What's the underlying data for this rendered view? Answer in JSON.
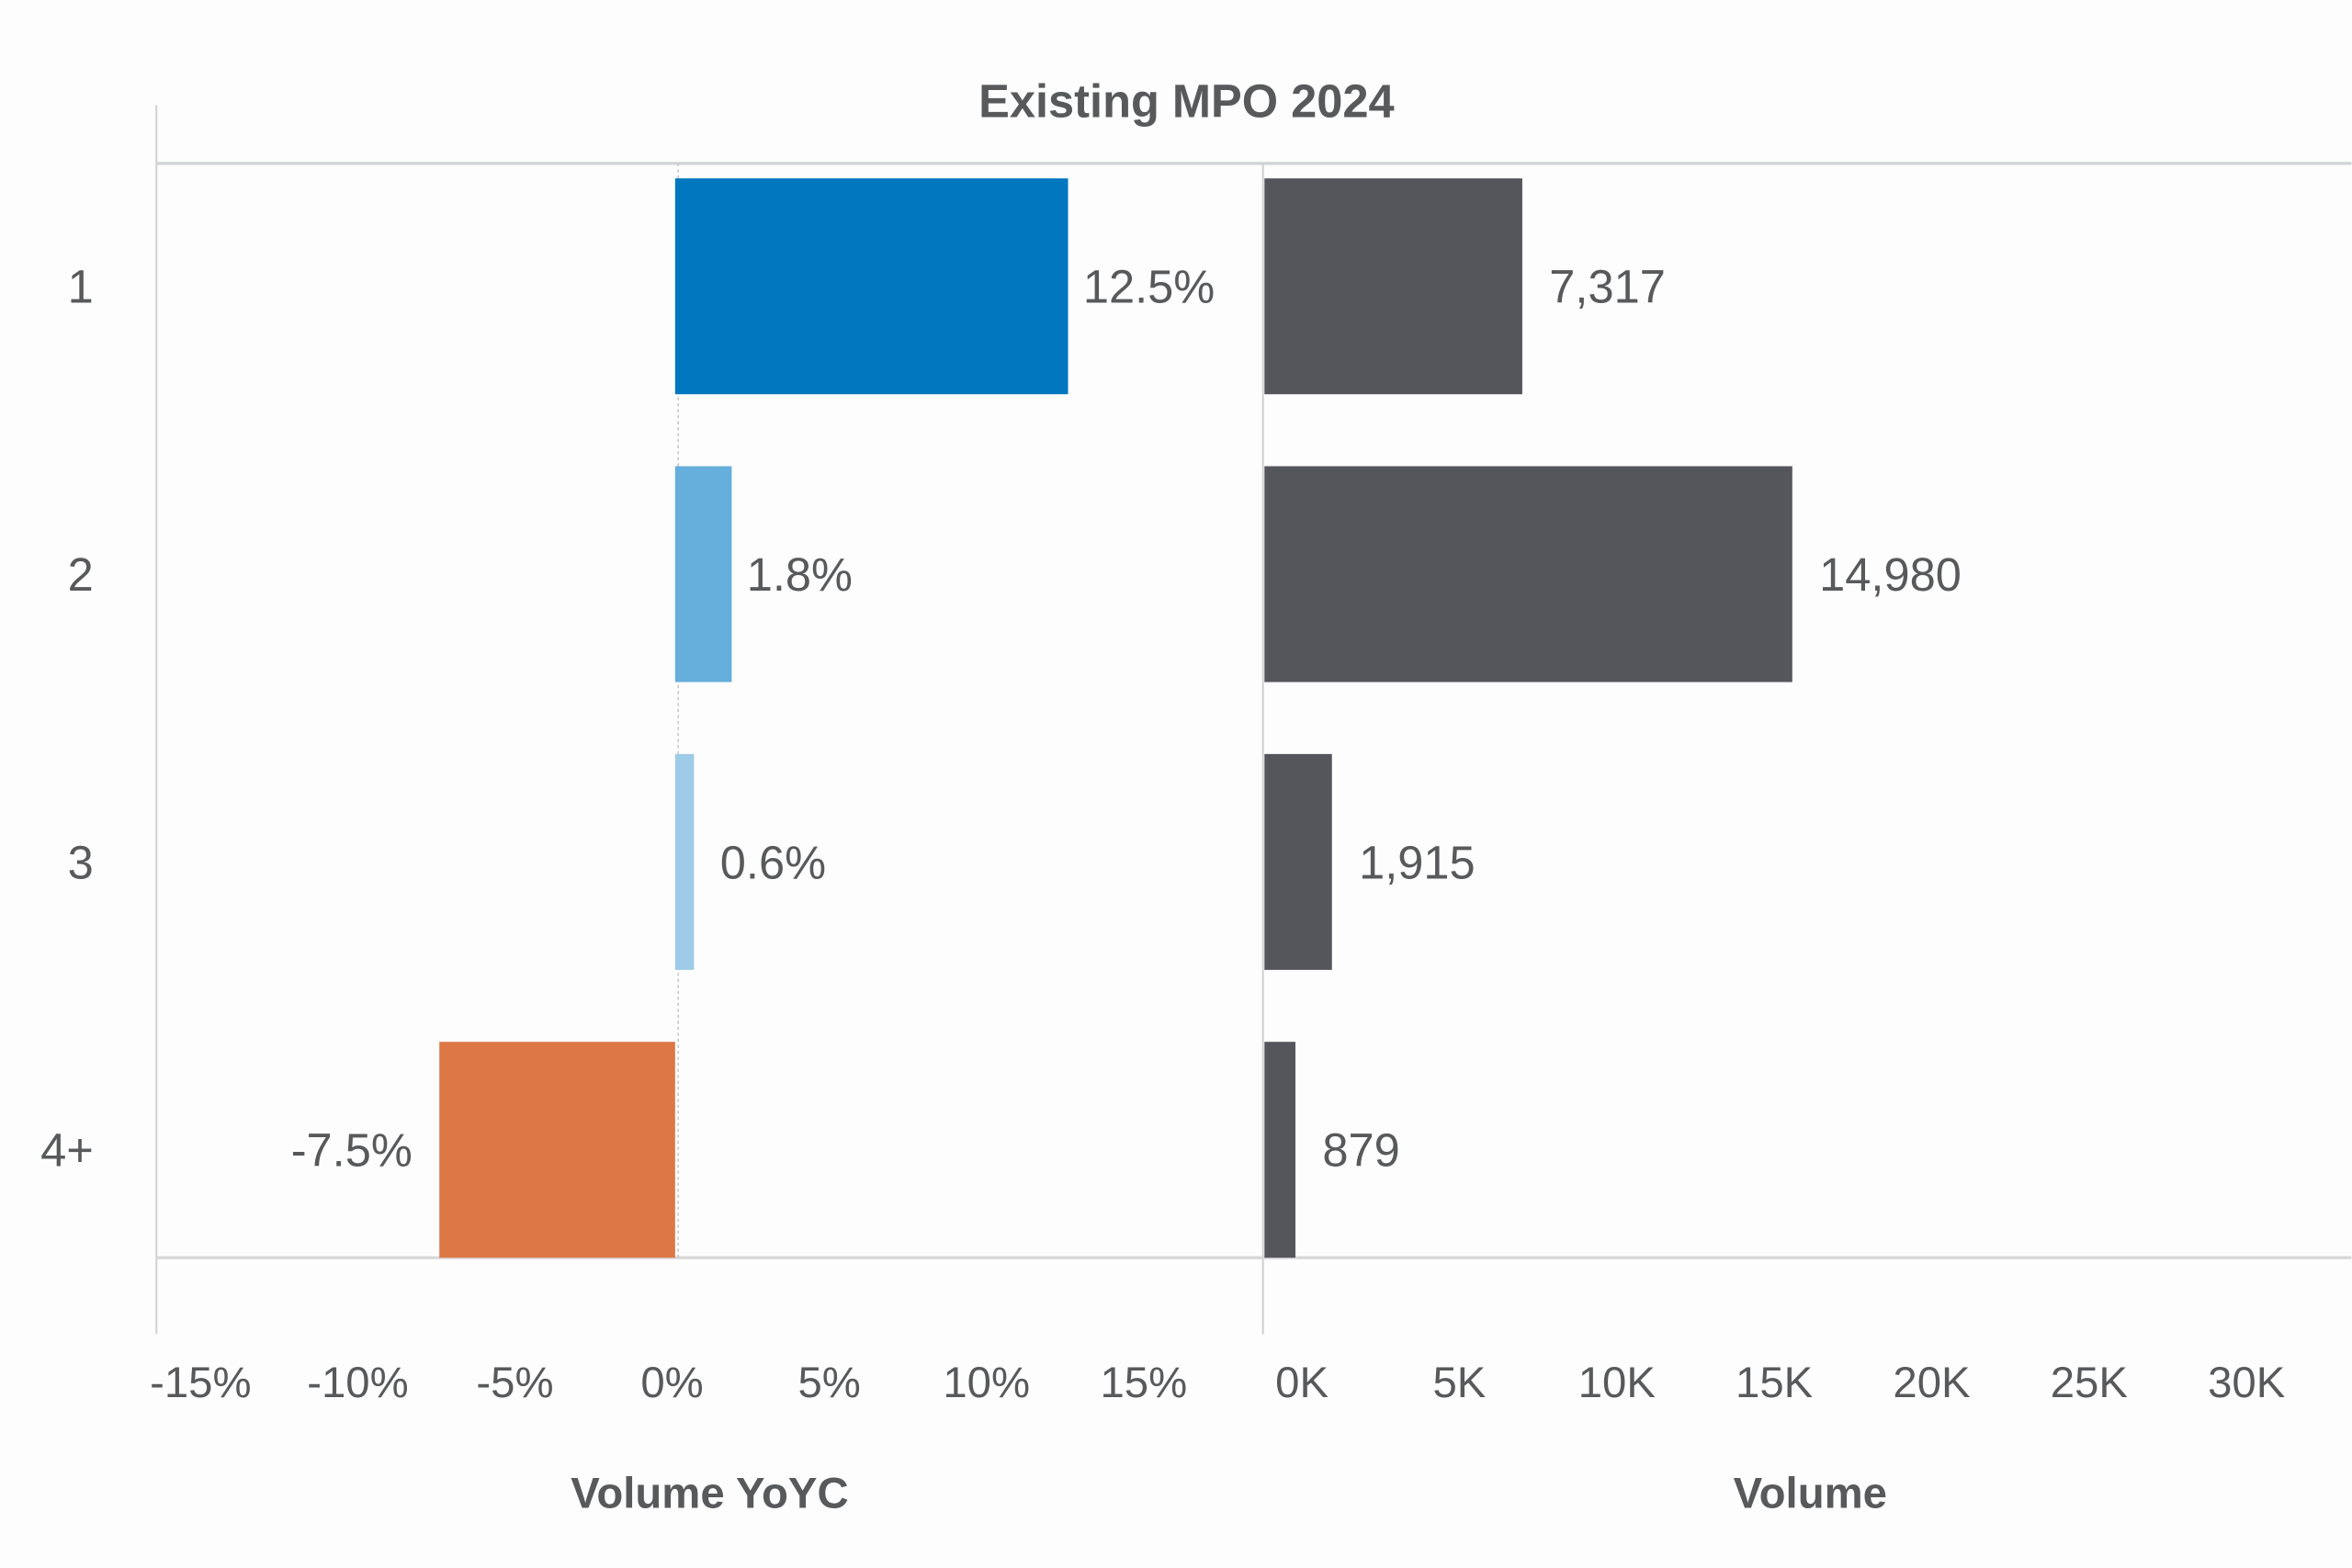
{
  "chart_data": [
    {
      "type": "bar",
      "orientation": "horizontal",
      "title": "Existing MPO 2024",
      "xlabel": "Volume YoYC",
      "ylabel": "",
      "categories": [
        "1",
        "2",
        "3",
        "4+"
      ],
      "values": [
        12.5,
        1.8,
        0.6,
        -7.5
      ],
      "data_labels": [
        "12.5%",
        "1.8%",
        "0.6%",
        "-7.5%"
      ],
      "colors": [
        "#0077bf",
        "#66aedb",
        "#9dcbe8",
        "#dd7745"
      ],
      "xlim": [
        -16.5,
        18.7
      ],
      "ticks": [
        -15,
        -10,
        -5,
        0,
        5,
        10,
        15
      ],
      "tick_labels": [
        "-15%",
        "-10%",
        "-5%",
        "0%",
        "5%",
        "10%",
        "15%"
      ],
      "grid": false
    },
    {
      "type": "bar",
      "orientation": "horizontal",
      "xlabel": "Volume",
      "categories": [
        "1",
        "2",
        "3",
        "4+"
      ],
      "values": [
        7317,
        14980,
        1915,
        879
      ],
      "data_labels": [
        "7,317",
        "14,980",
        "1,915",
        "879"
      ],
      "color": "#55565b",
      "xlim": [
        0,
        30850
      ],
      "ticks": [
        0,
        5000,
        10000,
        15000,
        20000,
        25000,
        30000
      ],
      "tick_labels": [
        "0K",
        "5K",
        "10K",
        "15K",
        "20K",
        "25K",
        "30K"
      ],
      "grid": false
    }
  ]
}
